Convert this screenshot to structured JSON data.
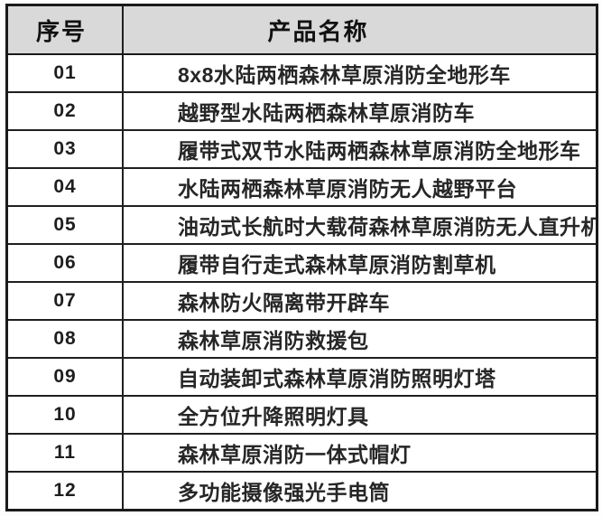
{
  "table": {
    "columns": [
      {
        "label": "序号"
      },
      {
        "label": "产品名称"
      }
    ],
    "rows": [
      {
        "no": "01",
        "name": "8x8水陆两栖森林草原消防全地形车"
      },
      {
        "no": "02",
        "name": "越野型水陆两栖森林草原消防车"
      },
      {
        "no": "03",
        "name": "履带式双节水陆两栖森林草原消防全地形车"
      },
      {
        "no": "04",
        "name": "水陆两栖森林草原消防无人越野平台"
      },
      {
        "no": "05",
        "name": "油动式长航时大载荷森林草原消防无人直升机"
      },
      {
        "no": "06",
        "name": "履带自行走式森林草原消防割草机"
      },
      {
        "no": "07",
        "name": "森林防火隔离带开辟车"
      },
      {
        "no": "08",
        "name": "森林草原消防救援包"
      },
      {
        "no": "09",
        "name": "自动装卸式森林草原消防照明灯塔"
      },
      {
        "no": "10",
        "name": "全方位升降照明灯具"
      },
      {
        "no": "11",
        "name": "森林草原消防一体式帽灯"
      },
      {
        "no": "12",
        "name": "多功能摄像强光手电筒"
      }
    ],
    "colors": {
      "header_background": "#d9d9d9",
      "border": "#1a1a1a",
      "text": "#262626"
    }
  }
}
